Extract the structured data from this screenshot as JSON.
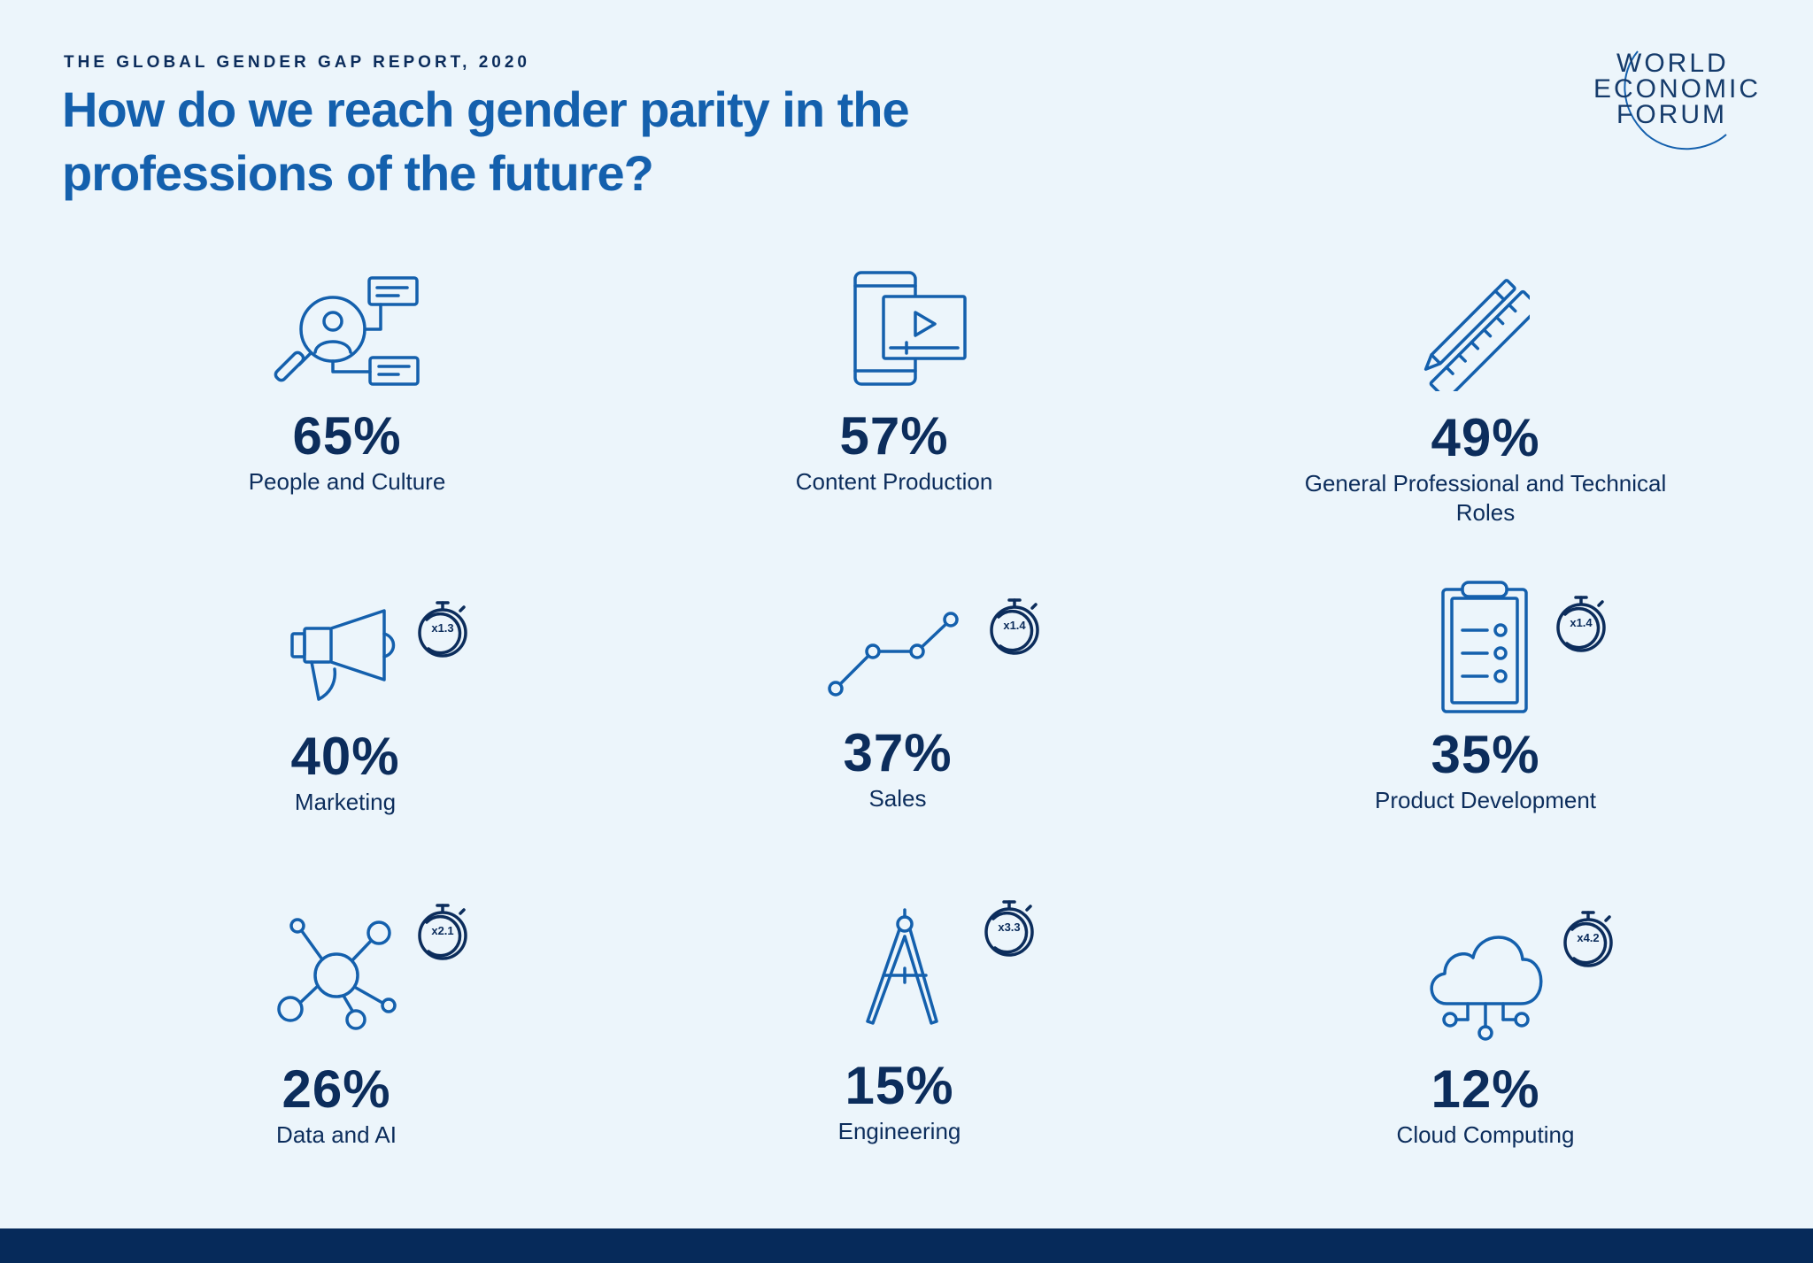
{
  "header": {
    "eyebrow": "THE GLOBAL GENDER GAP REPORT, 2020",
    "headline": "How do we reach gender parity in the professions of the future?"
  },
  "logo": {
    "lines": [
      "WORLD",
      "ECONOMIC",
      "FORUM"
    ]
  },
  "items": [
    {
      "value": "65%",
      "label": "People and Culture",
      "icon": "people-search-icon",
      "multiplier": ""
    },
    {
      "value": "57%",
      "label": "Content Production",
      "icon": "mobile-video-icon",
      "multiplier": ""
    },
    {
      "value": "49%",
      "label": "General Professional and Technical Roles",
      "icon": "pen-ruler-icon",
      "multiplier": ""
    },
    {
      "value": "40%",
      "label": "Marketing",
      "icon": "megaphone-icon",
      "multiplier": "x1.3"
    },
    {
      "value": "37%",
      "label": "Sales",
      "icon": "line-chart-icon",
      "multiplier": "x1.4"
    },
    {
      "value": "35%",
      "label": "Product Development",
      "icon": "clipboard-icon",
      "multiplier": "x1.4"
    },
    {
      "value": "26%",
      "label": "Data and AI",
      "icon": "network-icon",
      "multiplier": "x2.1"
    },
    {
      "value": "15%",
      "label": "Engineering",
      "icon": "compass-icon",
      "multiplier": "x3.3"
    },
    {
      "value": "12%",
      "label": "Cloud Computing",
      "icon": "cloud-icon",
      "multiplier": "x4.2"
    }
  ],
  "colors": {
    "background": "#ecf5fb",
    "headline": "#1460ad",
    "text": "#0c2d5c",
    "footer": "#062a5a"
  }
}
